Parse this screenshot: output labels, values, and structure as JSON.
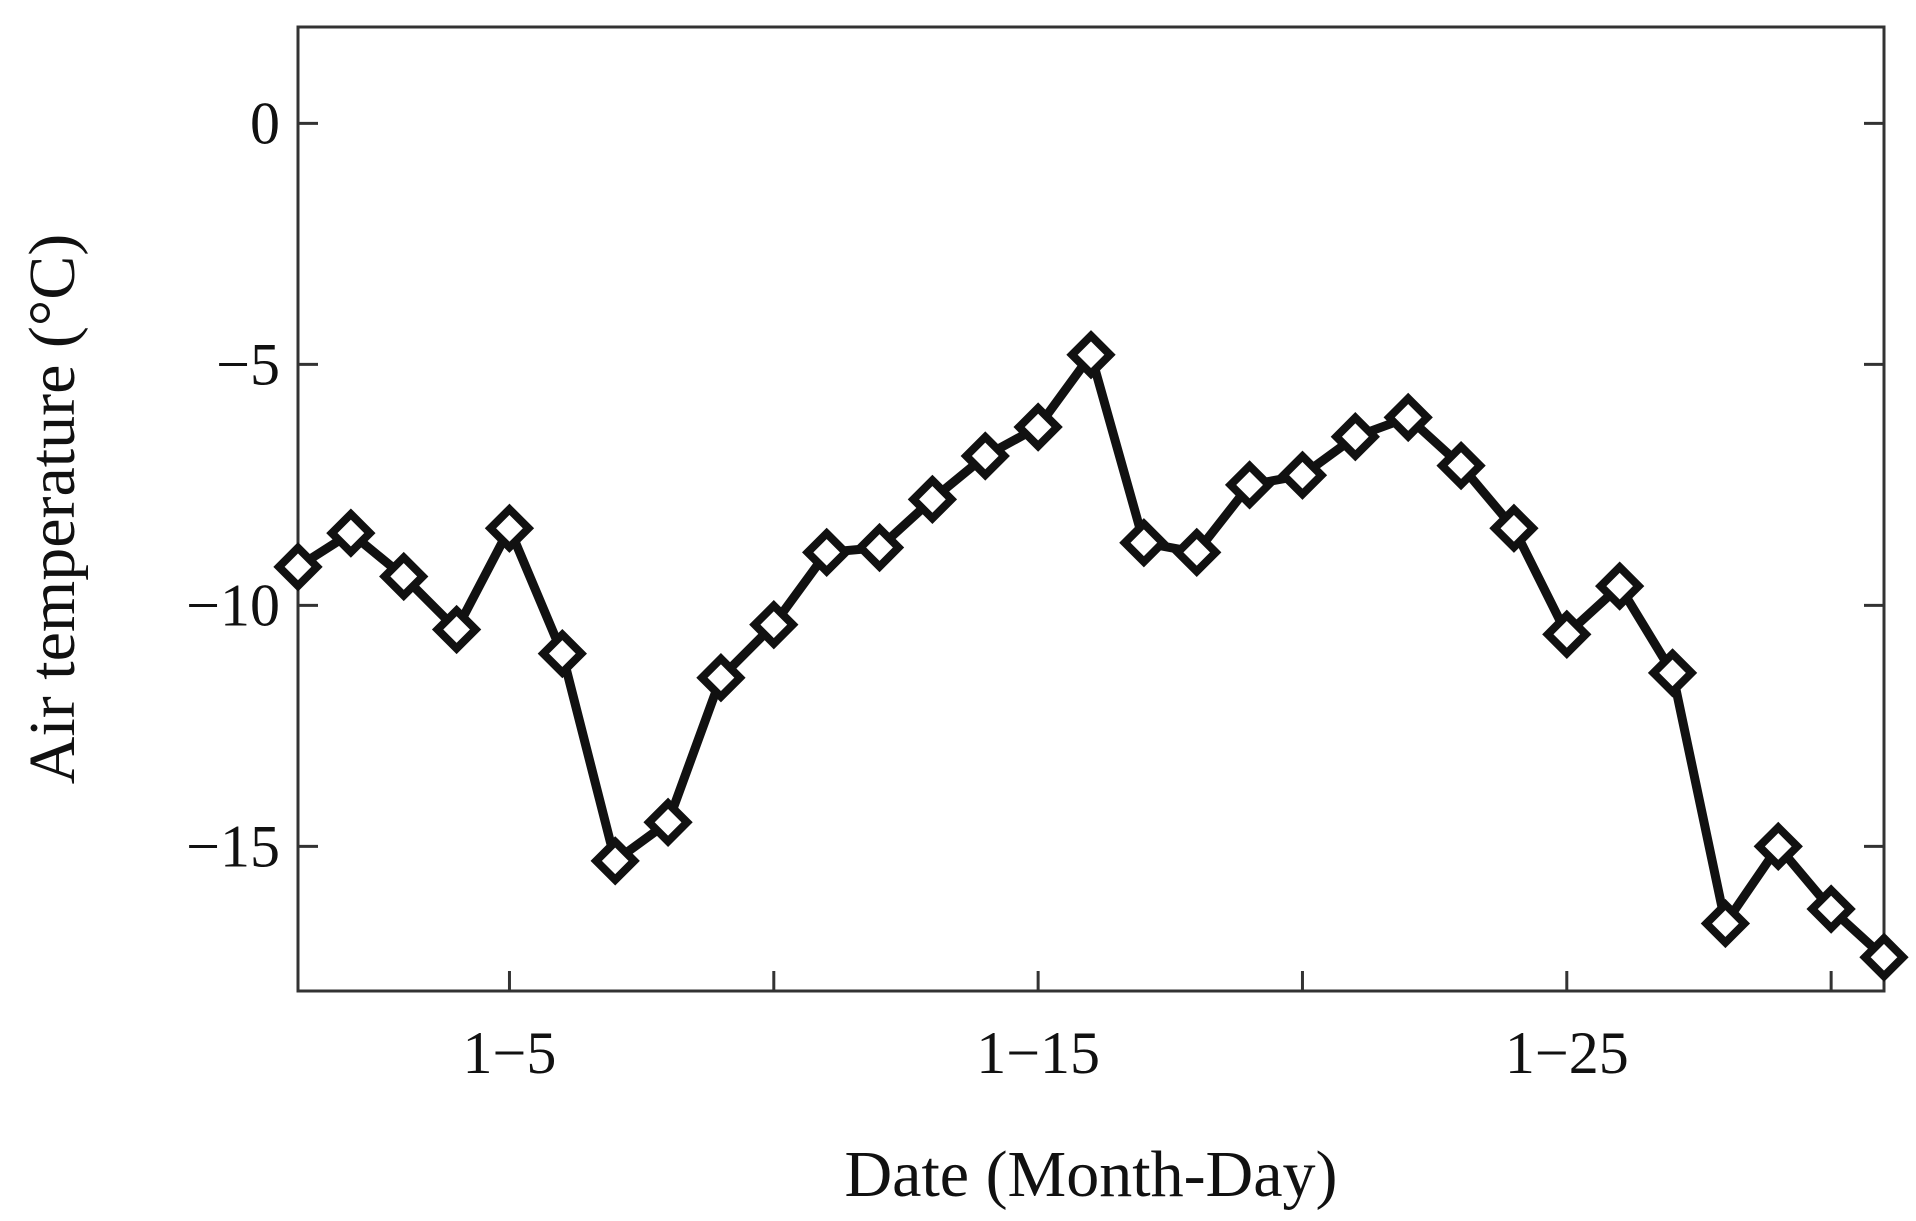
{
  "chart_data": {
    "type": "line",
    "title": "",
    "xlabel": "Date (Month-Day)",
    "ylabel": "Air temperature (°C)",
    "x": [
      1,
      2,
      3,
      4,
      5,
      6,
      7,
      8,
      9,
      10,
      11,
      12,
      13,
      14,
      15,
      16,
      17,
      18,
      19,
      20,
      21,
      22,
      23,
      24,
      25,
      26,
      27,
      28,
      29,
      30,
      31
    ],
    "xlim": [
      1,
      31
    ],
    "xticks": [
      5,
      10,
      15,
      20,
      25,
      30
    ],
    "xtick_labels": [
      "1−5",
      "",
      "1−15",
      "",
      "1−25",
      ""
    ],
    "ylim": [
      -18,
      2
    ],
    "yticks": [
      0,
      -5,
      -10,
      -15
    ],
    "ytick_labels": [
      "0",
      "−5",
      "−10",
      "−15"
    ],
    "series": [
      {
        "marker": "diamond",
        "color": "#111111",
        "values": [
          -9.2,
          -8.5,
          -9.4,
          -10.5,
          -8.4,
          -11.0,
          -15.3,
          -14.5,
          -11.5,
          -10.4,
          -8.9,
          -8.8,
          -7.8,
          -6.9,
          -6.3,
          -4.8,
          -8.7,
          -8.9,
          -7.5,
          -7.3,
          -6.5,
          -6.1,
          -7.1,
          -8.4,
          -10.6,
          -9.6,
          -11.4,
          -16.6,
          -15.0,
          -16.3,
          -17.3
        ]
      }
    ],
    "grid": false,
    "colors": {
      "line": "#111111",
      "axes": "#333333",
      "background": "#ffffff"
    }
  }
}
